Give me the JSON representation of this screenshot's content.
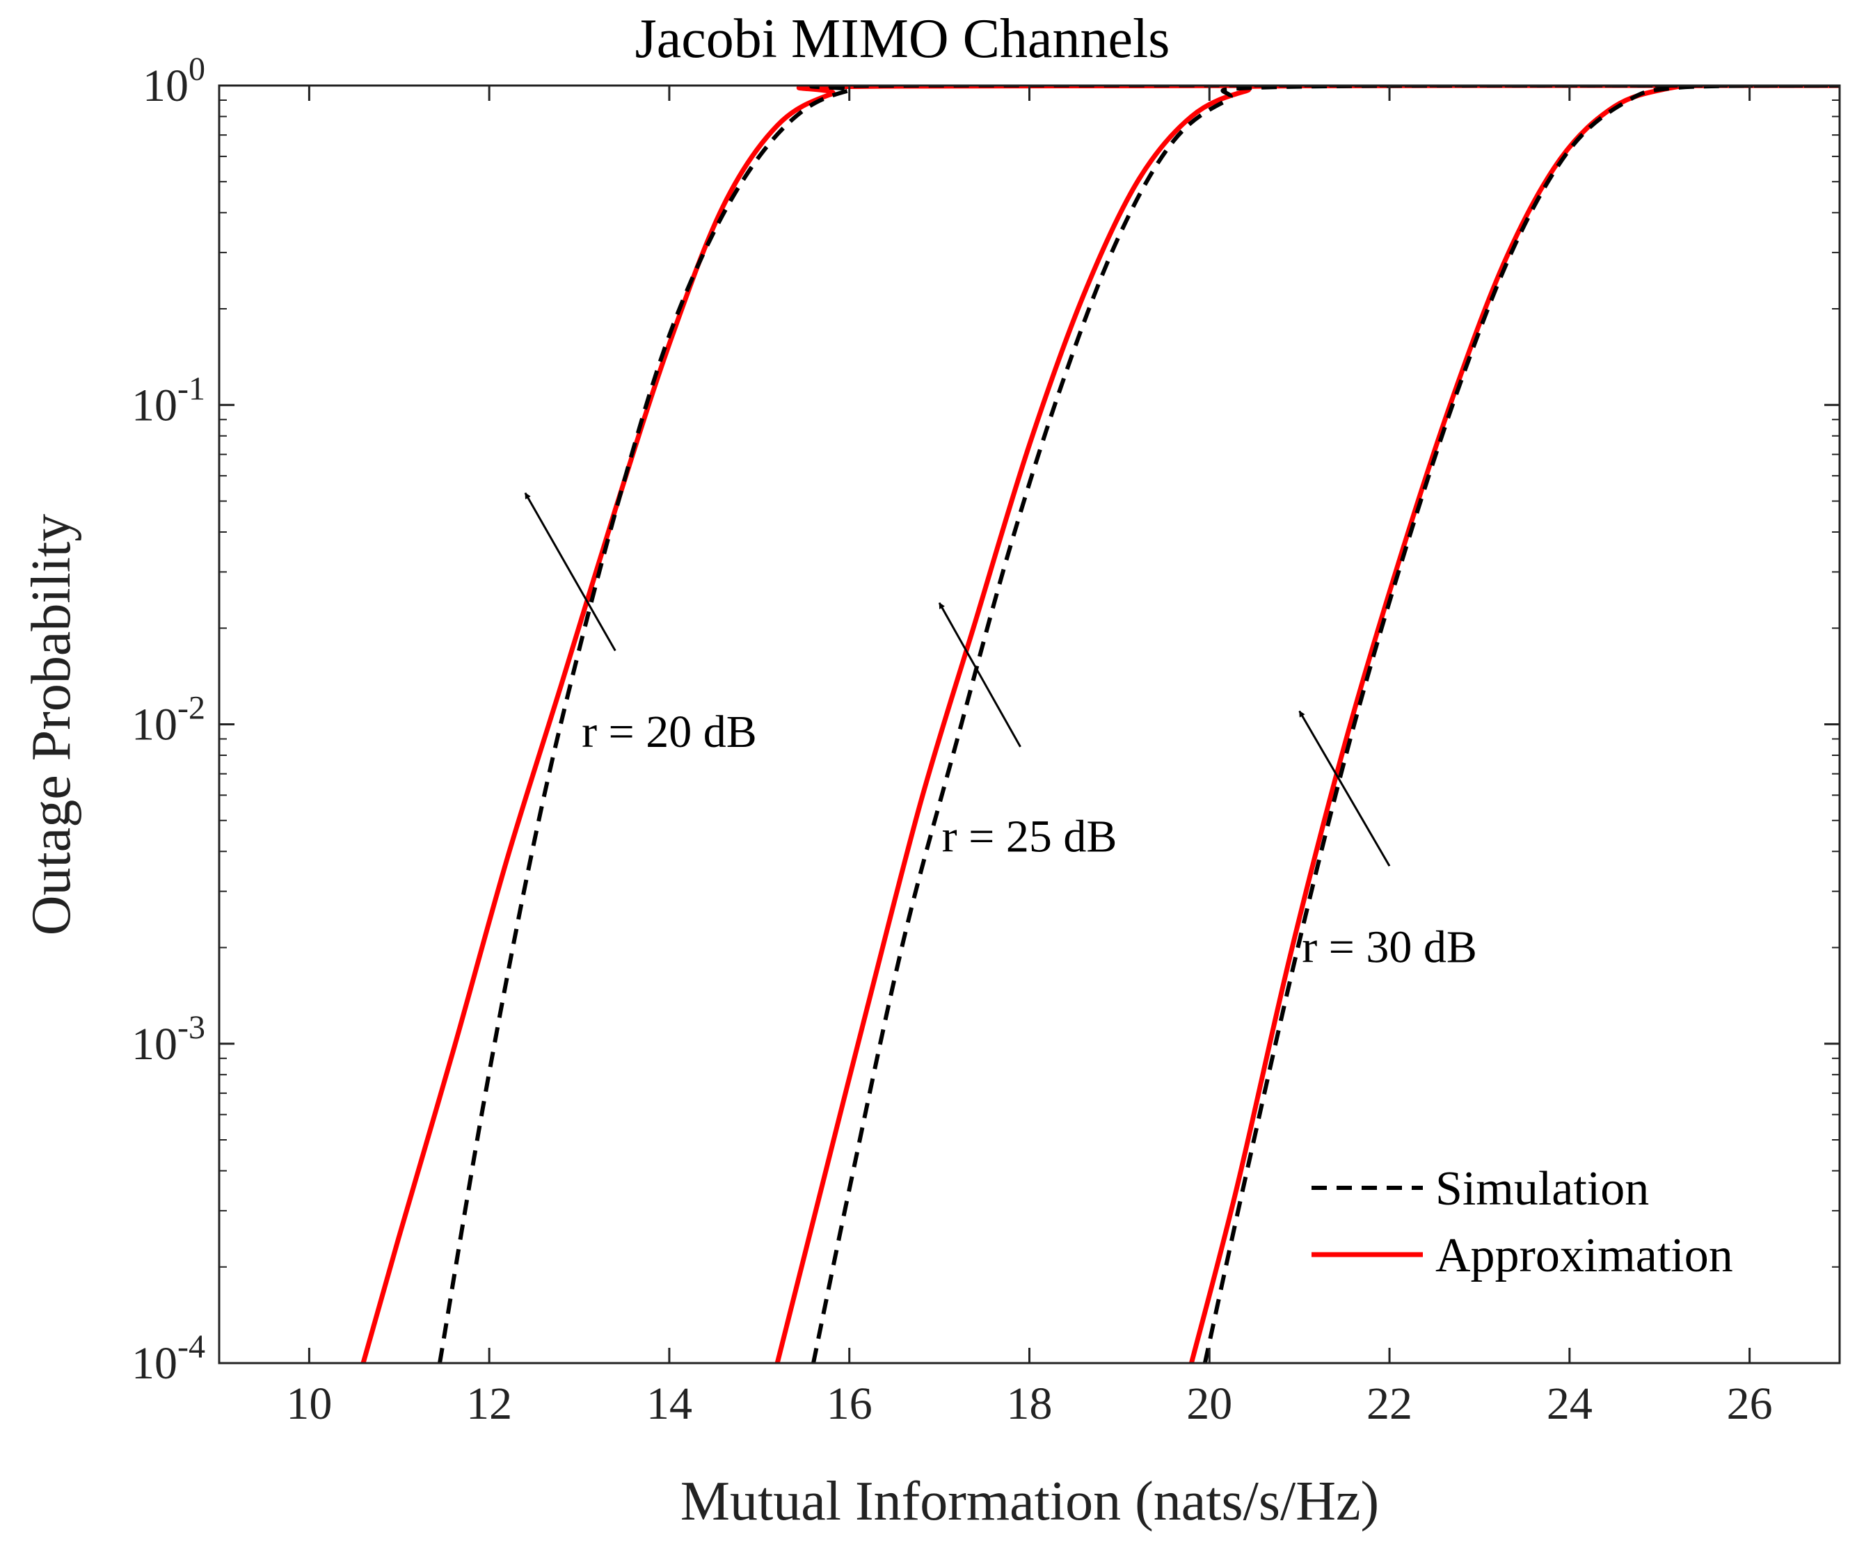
{
  "chart_data": {
    "type": "line",
    "title": "Jacobi MIMO Channels",
    "xlabel": "Mutual Information (nats/s/Hz)",
    "ylabel": "Outage Probability",
    "xlim": [
      9,
      27
    ],
    "ylim": [
      0.0001,
      1
    ],
    "yscale": "log",
    "x_ticks": [
      {
        "value": 10,
        "label": "10"
      },
      {
        "value": 12,
        "label": "12"
      },
      {
        "value": 14,
        "label": "14"
      },
      {
        "value": 16,
        "label": "16"
      },
      {
        "value": 18,
        "label": "18"
      },
      {
        "value": 20,
        "label": "20"
      },
      {
        "value": 22,
        "label": "22"
      },
      {
        "value": 24,
        "label": "24"
      },
      {
        "value": 26,
        "label": "26"
      }
    ],
    "y_ticks": [
      {
        "value": 1,
        "base": "10",
        "exp": "0"
      },
      {
        "value": 0.1,
        "base": "10",
        "exp": "-1"
      },
      {
        "value": 0.01,
        "base": "10",
        "exp": "-2"
      },
      {
        "value": 0.001,
        "base": "10",
        "exp": "-3"
      },
      {
        "value": 0.0001,
        "base": "10",
        "exp": "-4"
      }
    ],
    "grid": false,
    "legend_position": "bottom-right",
    "series": [
      {
        "name": "Simulation",
        "style": "dashed",
        "color": "#000000",
        "group": "r = 20 dB",
        "x": [
          11.45,
          11.95,
          12.5,
          13.0,
          13.55,
          14.0,
          14.5,
          15.0,
          15.5,
          16.0,
          16.5,
          27.0
        ],
        "y": [
          0.0001,
          0.00068,
          0.0043,
          0.0172,
          0.065,
          0.165,
          0.35,
          0.6,
          0.84,
          0.965,
          1.0,
          1.0
        ]
      },
      {
        "name": "Approximation",
        "style": "solid",
        "color": "#ff0000",
        "group": "r = 20 dB",
        "x": [
          10.6,
          11.0,
          11.6,
          12.2,
          12.8,
          13.4,
          14.0,
          14.6,
          15.2,
          15.8,
          16.4,
          27.0
        ],
        "y": [
          0.0001,
          0.00025,
          0.00095,
          0.0038,
          0.0133,
          0.047,
          0.155,
          0.42,
          0.75,
          0.94,
          0.995,
          1.0
        ]
      },
      {
        "name": "Simulation",
        "style": "dashed",
        "color": "#000000",
        "group": "r = 25 dB",
        "x": [
          15.6,
          16.0,
          16.6,
          17.2,
          17.8,
          18.4,
          19.0,
          19.6,
          20.2,
          20.8,
          27.0
        ],
        "y": [
          0.0001,
          0.00035,
          0.0021,
          0.009,
          0.037,
          0.125,
          0.34,
          0.67,
          0.9,
          0.99,
          1.0
        ]
      },
      {
        "name": "Approximation",
        "style": "solid",
        "color": "#ff0000",
        "group": "r = 25 dB",
        "x": [
          15.2,
          15.6,
          16.2,
          16.8,
          17.4,
          18.0,
          18.6,
          19.2,
          19.8,
          20.4,
          21.0,
          27.0
        ],
        "y": [
          0.0001,
          0.00028,
          0.0013,
          0.0058,
          0.021,
          0.075,
          0.22,
          0.5,
          0.8,
          0.96,
          0.998,
          1.0
        ]
      },
      {
        "name": "Simulation",
        "style": "dashed",
        "color": "#000000",
        "group": "r = 30 dB",
        "x": [
          19.95,
          20.4,
          21.0,
          21.6,
          22.2,
          22.8,
          23.4,
          24.0,
          24.6,
          25.2,
          27.0
        ],
        "y": [
          0.0001,
          0.00038,
          0.0021,
          0.0098,
          0.037,
          0.12,
          0.32,
          0.63,
          0.88,
          0.985,
          1.0
        ]
      },
      {
        "name": "Approximation",
        "style": "solid",
        "color": "#ff0000",
        "group": "r = 30 dB",
        "x": [
          19.8,
          20.3,
          20.9,
          21.5,
          22.1,
          22.7,
          23.3,
          23.9,
          24.5,
          25.1,
          25.6,
          27.0
        ],
        "y": [
          0.0001,
          0.00035,
          0.0019,
          0.0086,
          0.032,
          0.105,
          0.29,
          0.59,
          0.86,
          0.98,
          1.0,
          1.0
        ]
      }
    ],
    "annotations": [
      {
        "text": "r = 20 dB",
        "label_at": [
          14.0,
          0.0085
        ],
        "arrow_from": [
          13.4,
          0.017
        ],
        "arrow_to": [
          12.4,
          0.053
        ]
      },
      {
        "text": "r = 25 dB",
        "label_at": [
          18.0,
          0.004
        ],
        "arrow_from": [
          17.9,
          0.0085
        ],
        "arrow_to": [
          17.0,
          0.024
        ]
      },
      {
        "text": "r = 30 dB",
        "label_at": [
          22.0,
          0.0018
        ],
        "arrow_from": [
          22.0,
          0.0036
        ],
        "arrow_to": [
          21.0,
          0.011
        ]
      }
    ],
    "legend": [
      {
        "label": "Simulation",
        "style": "dashed",
        "color": "#000000"
      },
      {
        "label": "Approximation",
        "style": "solid",
        "color": "#ff0000"
      }
    ]
  }
}
